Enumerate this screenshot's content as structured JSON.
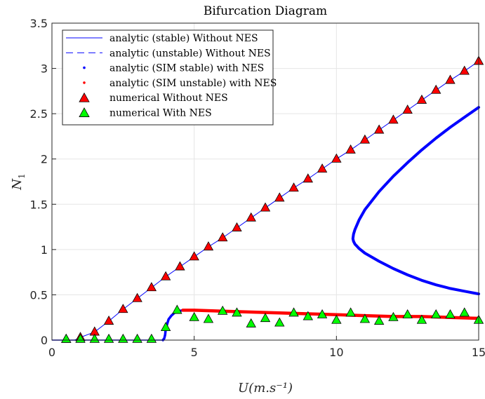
{
  "chart_data": {
    "type": "line",
    "title": "Bifurcation Diagram",
    "xlabel": "U(m.s⁻¹)",
    "ylabel": "N",
    "ylabel_subscript": "1",
    "xlim": [
      0,
      15
    ],
    "ylim": [
      0,
      3.5
    ],
    "xticks": [
      0,
      5,
      10,
      15
    ],
    "yticks": [
      0,
      0.5,
      1,
      1.5,
      2,
      2.5,
      3,
      3.5
    ],
    "xtick_labels": [
      "0",
      "5",
      "10",
      "15"
    ],
    "ytick_labels": [
      "0",
      "0.5",
      "1",
      "1.5",
      "2",
      "2.5",
      "3",
      "3.5"
    ],
    "grid": true,
    "legend_position": "top-left",
    "series": [
      {
        "name": "analytic (stable) Without NES",
        "style": "solid-line",
        "color": "#0000ff",
        "x": [
          0,
          0.5,
          0.8,
          1.0,
          1.5,
          2.0,
          2.5,
          3.0,
          3.5,
          4.0,
          4.5,
          5.0,
          5.5,
          6.0,
          6.5,
          7.0,
          7.5,
          8.0,
          8.5,
          9.0,
          9.5,
          10.0,
          10.5,
          11.0,
          11.5,
          12.0,
          12.5,
          13.0,
          13.5,
          14.0,
          14.5,
          15.0
        ],
        "y": [
          0,
          0,
          0,
          0.03,
          0.09,
          0.21,
          0.34,
          0.46,
          0.58,
          0.7,
          0.81,
          0.92,
          1.03,
          1.13,
          1.24,
          1.35,
          1.46,
          1.57,
          1.68,
          1.78,
          1.89,
          2.0,
          2.1,
          2.21,
          2.32,
          2.43,
          2.54,
          2.65,
          2.76,
          2.87,
          2.97,
          3.08
        ]
      },
      {
        "name": "analytic (unstable) Without NES",
        "style": "dashed-line",
        "color": "#0000ff",
        "x": [
          0.8,
          15.0
        ],
        "y": [
          0,
          0
        ]
      },
      {
        "name": "analytic (SIM stable) with NES",
        "style": "dots",
        "color": "#0000ff",
        "x": [
          0,
          1,
          2,
          3,
          3.9,
          3.95,
          3.98,
          4.0,
          4.05,
          4.1,
          4.2,
          4.3,
          4.45,
          4.6
        ],
        "y": [
          0,
          0,
          0,
          0,
          0,
          0.02,
          0.06,
          0.12,
          0.18,
          0.23,
          0.27,
          0.3,
          0.32,
          0.33
        ],
        "branch2": {
          "x": [
            15.0,
            14.5,
            14.0,
            13.5,
            13.0,
            12.5,
            12.0,
            11.5,
            11.0,
            10.8,
            10.65,
            10.6,
            10.58,
            10.6,
            10.65,
            10.8,
            11.0,
            11.5,
            12.0,
            12.5,
            13.0,
            13.5,
            14.0,
            14.5,
            15.0
          ],
          "y": [
            0.51,
            0.54,
            0.57,
            0.61,
            0.66,
            0.72,
            0.79,
            0.87,
            0.96,
            1.01,
            1.06,
            1.09,
            1.12,
            1.17,
            1.22,
            1.33,
            1.44,
            1.64,
            1.81,
            1.96,
            2.1,
            2.23,
            2.35,
            2.46,
            2.57
          ]
        }
      },
      {
        "name": "analytic (SIM unstable) with NES",
        "style": "dots",
        "color": "#ff0000",
        "x": [
          4.6,
          5.0,
          6.0,
          7.0,
          8.0,
          9.0,
          10.0,
          11.0,
          12.0,
          13.0,
          14.0,
          15.0
        ],
        "y": [
          0.33,
          0.33,
          0.32,
          0.31,
          0.3,
          0.29,
          0.28,
          0.27,
          0.26,
          0.26,
          0.25,
          0.24
        ]
      },
      {
        "name": "numerical Without NES",
        "style": "triangle-markers",
        "color": "#ff0000",
        "x": [
          0.5,
          1.0,
          1.5,
          2.0,
          2.5,
          3.0,
          3.5,
          4.0,
          4.5,
          5.0,
          5.5,
          6.0,
          6.5,
          7.0,
          7.5,
          8.0,
          8.5,
          9.0,
          9.5,
          10.0,
          10.5,
          11.0,
          11.5,
          12.0,
          12.5,
          13.0,
          13.5,
          14.0,
          14.5,
          15.0
        ],
        "y": [
          0.01,
          0.03,
          0.09,
          0.21,
          0.34,
          0.46,
          0.58,
          0.7,
          0.81,
          0.92,
          1.03,
          1.13,
          1.24,
          1.35,
          1.46,
          1.57,
          1.68,
          1.78,
          1.89,
          2.0,
          2.1,
          2.21,
          2.32,
          2.43,
          2.54,
          2.65,
          2.76,
          2.87,
          2.97,
          3.08
        ]
      },
      {
        "name": "numerical With NES",
        "style": "triangle-markers",
        "color": "#00ff00",
        "x": [
          0.5,
          1.0,
          1.5,
          2.0,
          2.5,
          3.0,
          3.5,
          4.0,
          4.4,
          5.0,
          5.5,
          6.0,
          6.5,
          7.0,
          7.5,
          8.0,
          8.5,
          9.0,
          9.5,
          10.0,
          10.5,
          11.0,
          11.5,
          12.0,
          12.5,
          13.0,
          13.5,
          14.0,
          14.5,
          15.0
        ],
        "y": [
          0.01,
          0.01,
          0.01,
          0.01,
          0.01,
          0.01,
          0.01,
          0.14,
          0.33,
          0.25,
          0.23,
          0.32,
          0.3,
          0.18,
          0.24,
          0.19,
          0.3,
          0.26,
          0.28,
          0.22,
          0.3,
          0.23,
          0.21,
          0.25,
          0.28,
          0.22,
          0.28,
          0.28,
          0.3,
          0.22
        ]
      }
    ]
  }
}
